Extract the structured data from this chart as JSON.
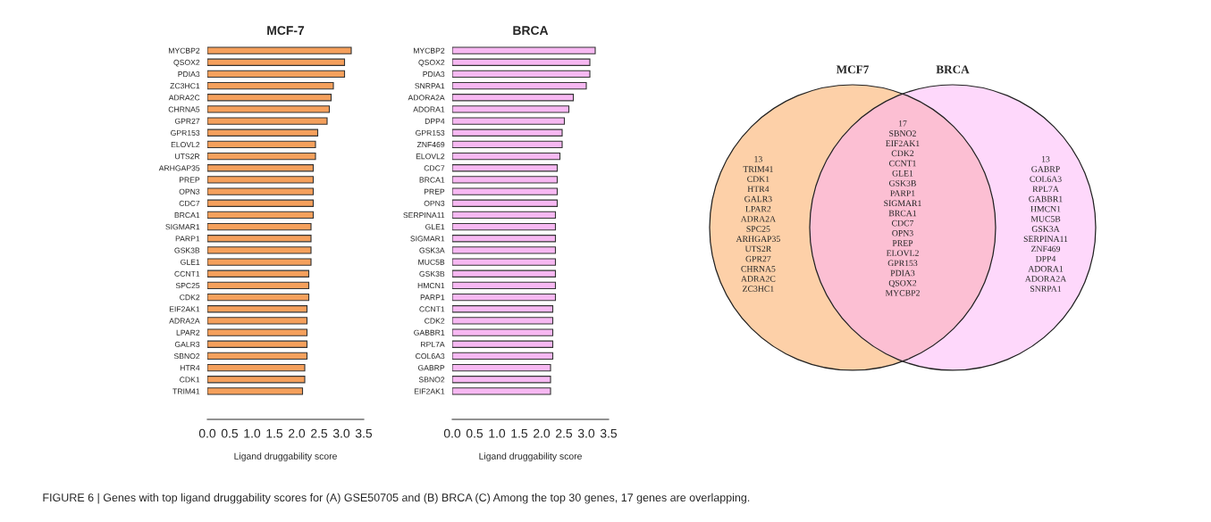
{
  "chart_data": [
    {
      "type": "bar",
      "orientation": "horizontal",
      "title": "MCF-7",
      "xlabel": "Ligand druggability score",
      "categories": [
        "MYCBP2",
        "QSOX2",
        "PDIA3",
        "ZC3HC1",
        "ADRA2C",
        "CHRNA5",
        "GPR27",
        "GPR153",
        "ELOVL2",
        "UTS2R",
        "ARHGAP35",
        "PREP",
        "OPN3",
        "CDC7",
        "BRCA1",
        "SIGMAR1",
        "PARP1",
        "GSK3B",
        "GLE1",
        "CCNT1",
        "SPC25",
        "CDK2",
        "EIF2AK1",
        "ADRA2A",
        "LPAR2",
        "GALR3",
        "SBNO2",
        "HTR4",
        "CDK1",
        "TRIM41"
      ],
      "values": [
        3.22,
        3.07,
        3.07,
        2.82,
        2.77,
        2.73,
        2.68,
        2.47,
        2.42,
        2.42,
        2.37,
        2.37,
        2.37,
        2.37,
        2.37,
        2.32,
        2.32,
        2.32,
        2.32,
        2.27,
        2.27,
        2.27,
        2.23,
        2.23,
        2.23,
        2.23,
        2.23,
        2.18,
        2.18,
        2.13
      ],
      "color": "#f5a05c",
      "xlim": [
        0,
        3.5
      ],
      "xticks": [
        {
          "value": 0,
          "label": "0.0"
        },
        0.5,
        {
          "value": 1,
          "label": "1.0"
        },
        1.5,
        {
          "value": 2,
          "label": "2.0"
        },
        2.5,
        {
          "value": 3,
          "label": "3.0"
        },
        3.5
      ],
      "annotations": [
        "FIGURE 6 | Genes with top ligand druggability scores for (A) GSE50705 and (B) BRCA (C) Among the top 30 genes, 17 genes are overlapping."
      ]
    },
    {
      "type": "bar",
      "orientation": "horizontal",
      "title": "BRCA",
      "xlabel": "Ligand druggability score",
      "categories": [
        "MYCBP2",
        "QSOX2",
        "PDIA3",
        "SNRPA1",
        "ADORA2A",
        "ADORA1",
        "DPP4",
        "GPR153",
        "ZNF469",
        "ELOVL2",
        "CDC7",
        "BRCA1",
        "PREP",
        "OPN3",
        "SERPINA11",
        "GLE1",
        "SIGMAR1",
        "GSK3A",
        "MUC5B",
        "GSK3B",
        "HMCN1",
        "PARP1",
        "CCNT1",
        "CDK2",
        "GABBR1",
        "RPL7A",
        "COL6A3",
        "GABRP",
        "SBNO2",
        "EIF2AK1"
      ],
      "values": [
        3.2,
        3.08,
        3.08,
        3.0,
        2.71,
        2.61,
        2.51,
        2.46,
        2.46,
        2.41,
        2.35,
        2.35,
        2.35,
        2.35,
        2.31,
        2.31,
        2.31,
        2.31,
        2.31,
        2.31,
        2.31,
        2.31,
        2.25,
        2.25,
        2.25,
        2.25,
        2.25,
        2.2,
        2.2,
        2.2
      ],
      "color": "#f7b8f2",
      "xlim": [
        0,
        3.5
      ],
      "xticks": [
        {
          "value": 0,
          "label": "0.0"
        },
        0.5,
        {
          "value": 1,
          "label": "1.0"
        },
        1.5,
        {
          "value": 2,
          "label": "2.0"
        },
        2.5,
        {
          "value": 3,
          "label": "3.0"
        },
        3.5
      ]
    },
    {
      "type": "other",
      "categories": [
        "MCF7",
        "BRCA"
      ],
      "colors": [
        "#fdd0a8",
        "#fed8fb",
        "#fcbfd3"
      ],
      "annotations": [
        "13\nTRIM41\nCDK1\nHTR4\nGALR3\nLPAR2\nADRA2A\nSPC25\nARHGAP35\nUTS2R\nGPR27\nCHRNA5\nADRA2C\nZC3HC1",
        "17\nSBNO2\nEIF2AK1\nCDK2\nCCNT1\nGLE1\nGSK3B\nPARP1\nSIGMAR1\nBRCA1\nCDC7\nOPN3\nPREP\nELOVL2\nGPR153\nPDIA3\nQSOX2\nMYCBP2",
        "13\nGABRP\nCOL6A3\nRPL7A\nGABBR1\nHMCN1\nMUC5B\nGSK3A\nSERPINA11\nZNF469\nDPP4\nADORA1\nADORA2A\nSNRPA1"
      ]
    }
  ]
}
